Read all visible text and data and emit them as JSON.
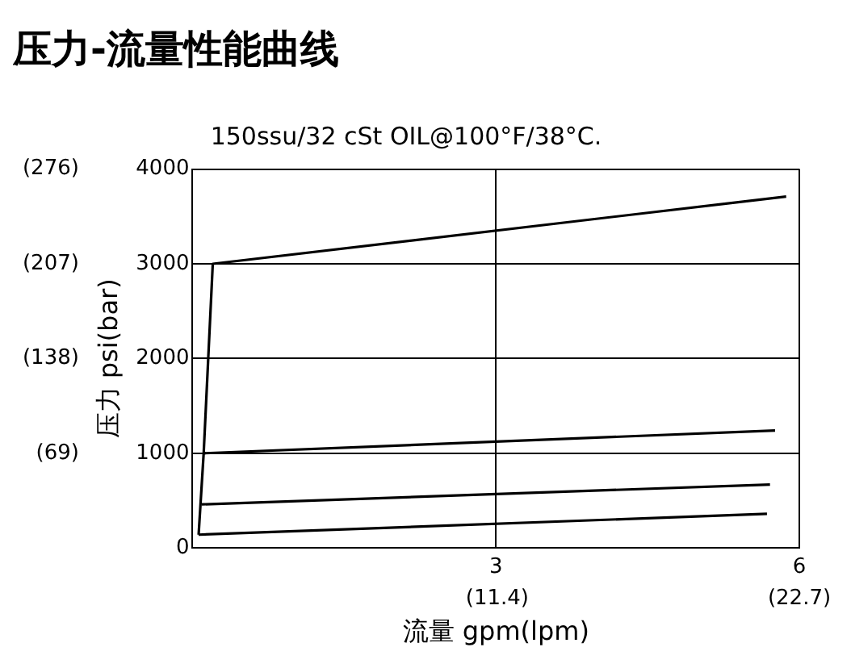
{
  "chart_data": {
    "type": "line",
    "title": "压力-流量性能曲线",
    "subtitle": "150ssu/32 cSt OIL@100°F/38°C.",
    "xlabel": "流量 gpm(lpm)",
    "ylabel": "压力 psi(bar)",
    "xlim": [
      0,
      6
    ],
    "xticks": [
      3,
      6
    ],
    "x2lim": [
      0,
      22.7
    ],
    "x2ticks": [
      {
        "value": 11.4,
        "label": "(11.4)"
      },
      {
        "value": 22.7,
        "label": "(22.7)"
      }
    ],
    "ylim": [
      0,
      4000
    ],
    "yticks": [
      0,
      1000,
      2000,
      3000,
      4000
    ],
    "y2lim": [
      0,
      276
    ],
    "y2ticks": [
      {
        "value": 69,
        "label": "(69)"
      },
      {
        "value": 138,
        "label": "(138)"
      },
      {
        "value": 207,
        "label": "(207)"
      },
      {
        "value": 276,
        "label": "(276)"
      }
    ],
    "grid": true,
    "legend": false,
    "marker": "none",
    "line_style": "solid",
    "series": [
      {
        "color": "#000000",
        "x": [
          0.06,
          0.11,
          0.2,
          5.87
        ],
        "values": [
          140,
          1000,
          3000,
          3710
        ]
      },
      {
        "color": "#000000",
        "x": [
          0.11,
          5.76
        ],
        "values": [
          1000,
          1240
        ]
      },
      {
        "color": "#000000",
        "x": [
          0.09,
          5.71
        ],
        "values": [
          460,
          670
        ]
      },
      {
        "color": "#000000",
        "x": [
          0.06,
          5.68
        ],
        "values": [
          140,
          360
        ]
      }
    ]
  }
}
